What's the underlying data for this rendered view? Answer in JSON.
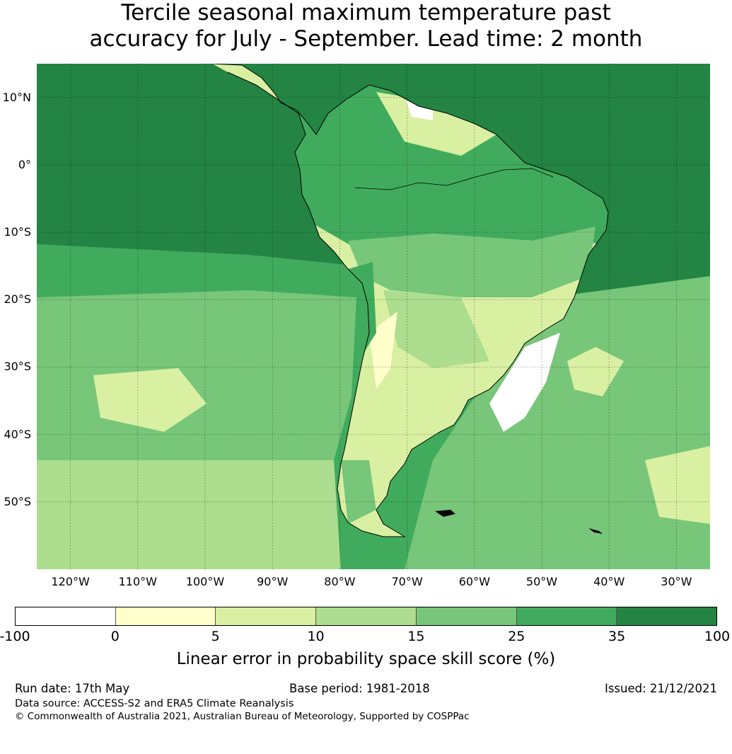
{
  "title": {
    "line1": "Tercile seasonal maximum temperature past",
    "line2": "accuracy for July - September. Lead time: 2 month"
  },
  "map": {
    "lat_labels": [
      "10°N",
      "0°",
      "10°S",
      "20°S",
      "30°S",
      "40°S",
      "50°S"
    ],
    "lon_labels": [
      "120°W",
      "110°W",
      "100°W",
      "90°W",
      "80°W",
      "70°W",
      "60°W",
      "50°W",
      "40°W",
      "30°W"
    ],
    "lon_extent": [
      -125,
      -25
    ],
    "lat_extent": [
      -60,
      15
    ],
    "colors": [
      "#ffffff",
      "#ffffcc",
      "#d9f0a3",
      "#addd8e",
      "#78c679",
      "#41ab5d",
      "#238443"
    ],
    "ocean_base": "#41ab5d",
    "land_base": "#d9f0a3"
  },
  "colorbar": {
    "ticks": [
      "-100",
      "0",
      "5",
      "10",
      "15",
      "25",
      "35",
      "100"
    ],
    "label": "Linear error in probability space skill score (%)"
  },
  "footer": {
    "run_date": "Run date: 17th May",
    "base_period": "Base period: 1981-2018",
    "issued": "Issued: 21/12/2021",
    "data_source": "Data source: ACCESS-S2 and ERA5 Climate Reanalysis",
    "copyright": "© Commonwealth of Australia 2021, Australian Bureau of Meteorology, Supported by COSPPac"
  }
}
